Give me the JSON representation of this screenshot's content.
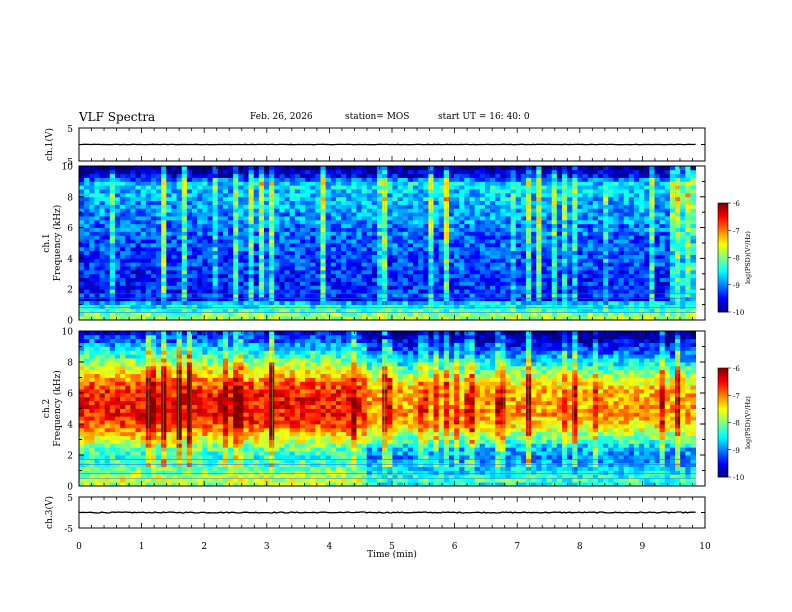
{
  "header": {
    "title": "VLF Spectra",
    "date": "Feb. 26, 2026",
    "station": "station= MOS",
    "start": "start  UT  =   16: 40: 0"
  },
  "chart_data": [
    {
      "type": "line",
      "id": "ch1_voltage",
      "ylabel": "ch.1(V)",
      "ylim": [
        -5,
        5
      ],
      "yticks": [
        "5",
        "-5"
      ],
      "series": [
        {
          "x": [
            0,
            9.85
          ],
          "y": [
            0,
            0
          ]
        }
      ]
    },
    {
      "type": "heatmap",
      "id": "ch1_spectrogram",
      "ylabel": "ch.1\nFrequency (kHz)",
      "ylabel_lines": [
        "ch.1",
        "Frequency (kHz)"
      ],
      "xlim": [
        0,
        10
      ],
      "ylim": [
        0,
        10
      ],
      "yticks": [
        "0",
        "2",
        "4",
        "6",
        "8",
        "10"
      ],
      "data_extent_x": [
        0,
        9.85
      ],
      "colorbar": {
        "min": -10,
        "max": -6,
        "ticks": [
          "-6",
          "-7",
          "-8",
          "-9",
          "-10"
        ],
        "label": "log(PSD)(V²/Hz)"
      },
      "rows": 40,
      "cols": 120,
      "profile": [
        -7.9,
        -8.0,
        -8.3,
        -8.5,
        -8.8,
        -9.6,
        -9.3,
        -9.4,
        -9.4,
        -9.4,
        -9.4,
        -9.4,
        -9.4,
        -9.3,
        -9.3,
        -9.3,
        -9.3,
        -9.3,
        -9.2,
        -9.2,
        -9.2,
        -9.2,
        -9.1,
        -9.1,
        -9.1,
        -9.0,
        -9.0,
        -9.0,
        -8.9,
        -8.9,
        -8.9,
        -8.8,
        -8.8,
        -8.8,
        -8.7,
        -8.7,
        -9.1,
        -9.6,
        -9.8,
        -10.0
      ],
      "time_trend": [
        0,
        0.05,
        0.1,
        0.05
      ],
      "burst_density": 0.22
    },
    {
      "type": "heatmap",
      "id": "ch2_spectrogram",
      "ylabel": "ch.2\nFrequency (kHz)",
      "ylabel_lines": [
        "ch.2",
        "Frequency (kHz)"
      ],
      "xlim": [
        0,
        10
      ],
      "ylim": [
        0,
        10
      ],
      "yticks": [
        "0",
        "2",
        "4",
        "6",
        "8",
        "10"
      ],
      "data_extent_x": [
        0,
        9.85
      ],
      "colorbar": {
        "min": -10,
        "max": -6,
        "ticks": [
          "-6",
          "-7",
          "-8",
          "-9",
          "-10"
        ],
        "label": "log(PSD)(V²/Hz)"
      },
      "rows": 40,
      "cols": 120,
      "profile": [
        -8.2,
        -8.0,
        -8.1,
        -8.3,
        -8.4,
        -8.5,
        -8.6,
        -8.7,
        -8.6,
        -8.5,
        -8.3,
        -8.0,
        -7.8,
        -7.6,
        -7.4,
        -7.2,
        -7.1,
        -7.0,
        -6.9,
        -6.9,
        -6.9,
        -6.9,
        -6.9,
        -7.0,
        -7.0,
        -7.1,
        -7.2,
        -7.4,
        -7.6,
        -7.8,
        -8.0,
        -8.2,
        -8.4,
        -8.6,
        -8.8,
        -9.0,
        -9.2,
        -9.4,
        -9.6,
        -9.8
      ],
      "time_trend": [
        0.35,
        0.3,
        -0.25,
        -0.2
      ],
      "trend_break_min": 4.6,
      "burst_density": 0.18
    },
    {
      "type": "line",
      "id": "ch3_voltage",
      "ylabel": "ch.3(V)",
      "xlabel": "Time  (min)",
      "xlim": [
        0,
        10
      ],
      "xticks": [
        "0",
        "1",
        "2",
        "3",
        "4",
        "5",
        "6",
        "7",
        "8",
        "9",
        "10"
      ],
      "ylim": [
        -5,
        5
      ],
      "yticks": [
        "5",
        "-5"
      ],
      "series": [
        {
          "x": [
            0,
            9.85
          ],
          "y": [
            0,
            0
          ]
        }
      ]
    }
  ]
}
